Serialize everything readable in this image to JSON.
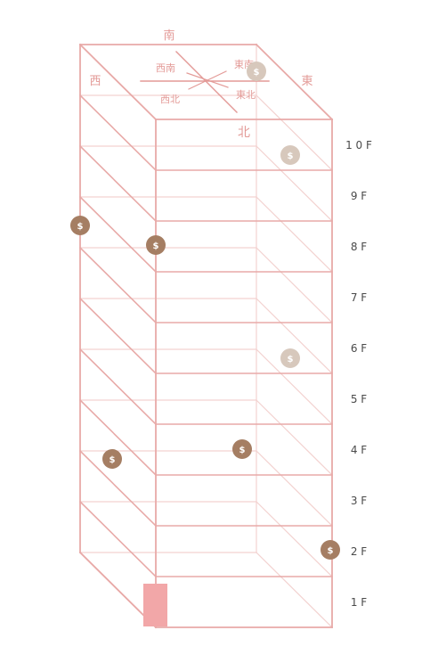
{
  "colors": {
    "line": "#e8aaa8",
    "line_faint": "#f3d2d0",
    "text": "#e39a97",
    "label": "#4a4a4a",
    "entrance": "#f2a7a8",
    "marker_dark": "#a57e63",
    "marker_light": "#d7c8bc",
    "marker_symbol": "#ffffff"
  },
  "compass": {
    "south": "南",
    "north": "北",
    "east": "東",
    "west": "西",
    "southwest": "西南",
    "southeast": "東南",
    "northwest": "西北",
    "northeast": "東北"
  },
  "floors": [
    "10F",
    "9F",
    "8F",
    "7F",
    "6F",
    "5F",
    "4F",
    "3F",
    "2F",
    "1F"
  ],
  "marker_symbol": "$",
  "markers": [
    {
      "floor": "10F",
      "position": "roof-east",
      "shade": "light"
    },
    {
      "floor": "10F",
      "position": "east-back",
      "shade": "light"
    },
    {
      "floor": "9F",
      "position": "west-edge",
      "shade": "dark"
    },
    {
      "floor": "8F",
      "position": "front-corner",
      "shade": "dark"
    },
    {
      "floor": "6F",
      "position": "east-back",
      "shade": "light"
    },
    {
      "floor": "4F",
      "position": "front-middle",
      "shade": "dark"
    },
    {
      "floor": "3F",
      "position": "west-face",
      "shade": "dark"
    },
    {
      "floor": "2F",
      "position": "east-edge",
      "shade": "dark"
    }
  ]
}
